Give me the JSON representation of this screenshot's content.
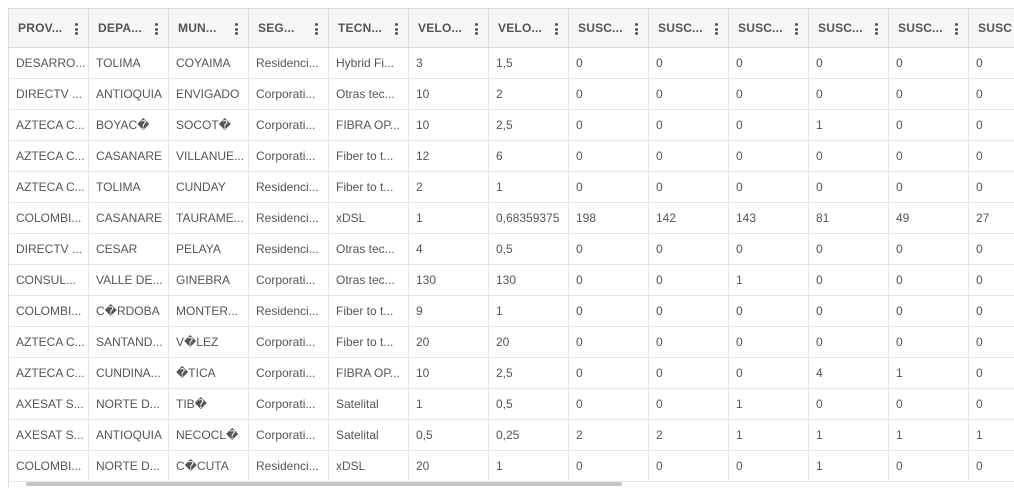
{
  "columns": [
    "PROV...",
    "DEPA...",
    "MUN...",
    "SEG...",
    "TECN...",
    "VELO...",
    "VELO...",
    "SUSC...",
    "SUSC...",
    "SUSC...",
    "SUSC...",
    "SUSC...",
    "SUSC"
  ],
  "rows": [
    [
      "DESARRO...",
      "TOLIMA",
      "COYAIMA",
      "Residenci...",
      "Hybrid Fi...",
      "3",
      "1,5",
      "0",
      "0",
      "0",
      "0",
      "0",
      "0"
    ],
    [
      "DIRECTV ...",
      "ANTIOQUIA",
      "ENVIGADO",
      "Corporati...",
      "Otras tec...",
      "10",
      "2",
      "0",
      "0",
      "0",
      "0",
      "0",
      "0"
    ],
    [
      "AZTECA C...",
      "BOYAC�",
      "SOCOT�",
      "Corporati...",
      "FIBRA OP...",
      "10",
      "2,5",
      "0",
      "0",
      "0",
      "1",
      "0",
      "0"
    ],
    [
      "AZTECA C...",
      "CASANARE",
      "VILLANUE...",
      "Corporati...",
      "Fiber to t...",
      "12",
      "6",
      "0",
      "0",
      "0",
      "0",
      "0",
      "0"
    ],
    [
      "AZTECA C...",
      "TOLIMA",
      "CUNDAY",
      "Residenci...",
      "Fiber to t...",
      "2",
      "1",
      "0",
      "0",
      "0",
      "0",
      "0",
      "0"
    ],
    [
      "COLOMBI...",
      "CASANARE",
      "TAURAME...",
      "Residenci...",
      "xDSL",
      "1",
      "0,68359375",
      "198",
      "142",
      "143",
      "81",
      "49",
      "27"
    ],
    [
      "DIRECTV ...",
      "CESAR",
      "PELAYA",
      "Residenci...",
      "Otras tec...",
      "4",
      "0,5",
      "0",
      "0",
      "0",
      "0",
      "0",
      "0"
    ],
    [
      "CONSUL...",
      "VALLE DE...",
      "GINEBRA",
      "Corporati...",
      "Otras tec...",
      "130",
      "130",
      "0",
      "0",
      "1",
      "0",
      "0",
      "0"
    ],
    [
      "COLOMBI...",
      "C�RDOBA",
      "MONTER...",
      "Residenci...",
      "Fiber to t...",
      "9",
      "1",
      "0",
      "0",
      "0",
      "0",
      "0",
      "0"
    ],
    [
      "AZTECA C...",
      "SANTAND...",
      "V�LEZ",
      "Corporati...",
      "Fiber to t...",
      "20",
      "20",
      "0",
      "0",
      "0",
      "0",
      "0",
      "0"
    ],
    [
      "AZTECA C...",
      "CUNDINA...",
      "�TICA",
      "Corporati...",
      "FIBRA OP...",
      "10",
      "2,5",
      "0",
      "0",
      "0",
      "4",
      "1",
      "0"
    ],
    [
      "AXESAT S...",
      "NORTE D...",
      "TIB�",
      "Corporati...",
      "Satelital",
      "1",
      "0,5",
      "0",
      "0",
      "1",
      "0",
      "0",
      "0"
    ],
    [
      "AXESAT S...",
      "ANTIOQUIA",
      "NECOCL�",
      "Corporati...",
      "Satelital",
      "0,5",
      "0,25",
      "2",
      "2",
      "1",
      "1",
      "1",
      "1"
    ],
    [
      "COLOMBI...",
      "NORTE D...",
      "C�CUTA",
      "Residenci...",
      "xDSL",
      "20",
      "1",
      "0",
      "0",
      "0",
      "1",
      "0",
      "0"
    ]
  ],
  "icons": {
    "column_menu": "kebab-menu-icon"
  },
  "colors": {
    "header_bg": "#f6f6f6",
    "text": "#555555",
    "border": "#dddddd",
    "scrollbar": "#c4c4c4"
  }
}
